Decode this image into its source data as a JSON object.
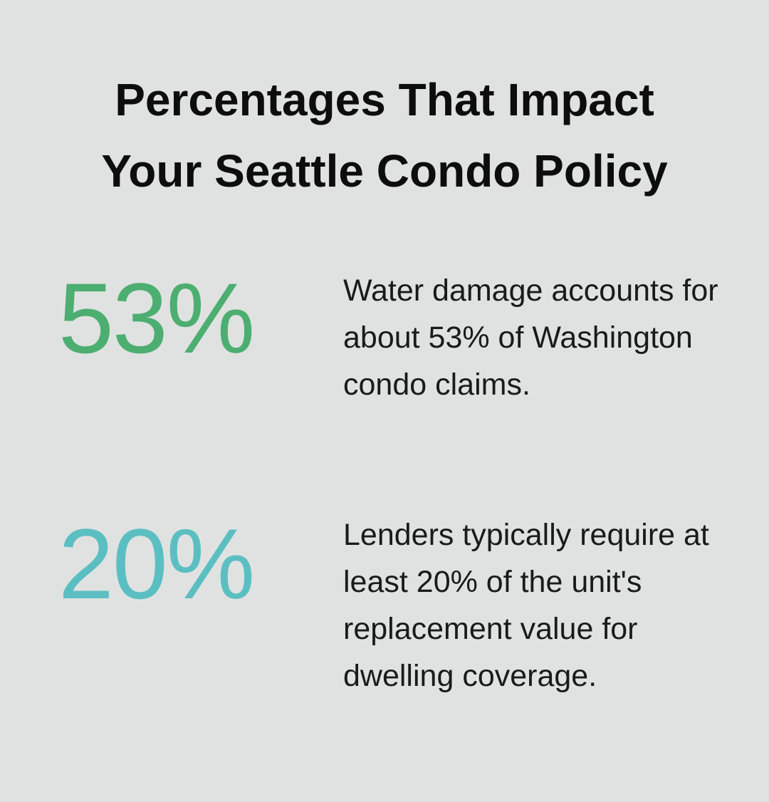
{
  "header": {
    "title_lines": [
      "Percentages That Impact",
      "Your Seattle Condo Policy"
    ]
  },
  "items": [
    {
      "stat": "53%",
      "color": "#4cae70",
      "description": "Water damage accounts for about 53% of Washington condo claims."
    },
    {
      "stat": "20%",
      "color": "#5bbfc2",
      "description": "Lenders typically require at least 20% of the unit's replacement value for dwelling coverage."
    }
  ]
}
